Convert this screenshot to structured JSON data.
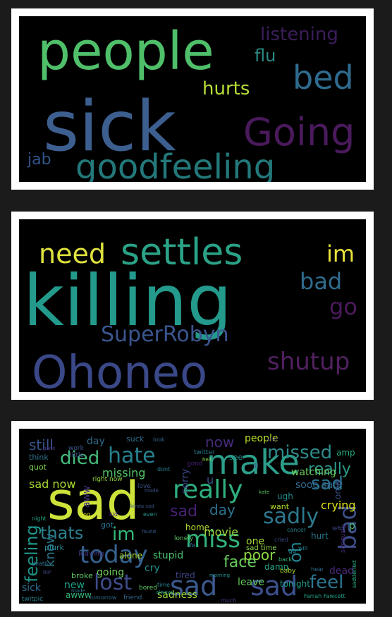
{
  "colors": {
    "page_background": "#1b1b1b",
    "frame": "#ffffff",
    "cloud_background": "#000000"
  },
  "clouds": [
    {
      "words": [
        {
          "text": "people",
          "color": "#4fbf6a"
        },
        {
          "text": "sick",
          "color": "#3d5f90"
        },
        {
          "text": "bed",
          "color": "#2e6b8e"
        },
        {
          "text": "Going",
          "color": "#4a1a5c"
        },
        {
          "text": "goodfeeling",
          "color": "#23787a"
        },
        {
          "text": "listening",
          "color": "#3b1e5a"
        },
        {
          "text": "flu",
          "color": "#2b8a86"
        },
        {
          "text": "hurts",
          "color": "#b6dd36"
        },
        {
          "text": "jab",
          "color": "#2f5588"
        }
      ]
    },
    {
      "words": [
        {
          "text": "need",
          "color": "#dfe13e"
        },
        {
          "text": "settles",
          "color": "#2aa286"
        },
        {
          "text": "im",
          "color": "#e8e13a"
        },
        {
          "text": "killing",
          "color": "#239a8c"
        },
        {
          "text": "bad",
          "color": "#2f6c8e"
        },
        {
          "text": "go",
          "color": "#4c1a5c"
        },
        {
          "text": "SuperRobyn",
          "color": "#3b558f"
        },
        {
          "text": "Ohoneo",
          "color": "#3a4888"
        },
        {
          "text": "shutup",
          "color": "#51215f"
        }
      ]
    },
    {
      "words": [
        {
          "text": "sad",
          "color": "#cde23a"
        },
        {
          "text": "make",
          "color": "#2d9e8a"
        },
        {
          "text": "really",
          "color": "#2fb07e"
        },
        {
          "text": "hate",
          "color": "#27808e"
        },
        {
          "text": "died",
          "color": "#46b97a"
        },
        {
          "text": "missed",
          "color": "#2f8a8c"
        },
        {
          "text": "today",
          "color": "#35628f"
        },
        {
          "text": "sad",
          "color": "#3c5a8e"
        },
        {
          "text": "sad",
          "color": "#3b4f8b"
        },
        {
          "text": "sadly",
          "color": "#2d788e"
        },
        {
          "text": "lost",
          "color": "#3f4c8a"
        },
        {
          "text": "miss",
          "color": "#32b27a"
        },
        {
          "text": "feel",
          "color": "#2b748e"
        },
        {
          "text": "feeling",
          "color": "#1f968b"
        },
        {
          "text": "thats",
          "color": "#2a818e"
        },
        {
          "text": "im",
          "color": "#35b779"
        },
        {
          "text": "bad",
          "color": "#3d4e8a"
        },
        {
          "text": "sad",
          "color": "#2c728e"
        },
        {
          "text": "face",
          "color": "#66c95b"
        },
        {
          "text": "poor",
          "color": "#8fd744"
        },
        {
          "text": "still",
          "color": "#3b528b"
        },
        {
          "text": "now",
          "color": "#472c7a"
        },
        {
          "text": "missing",
          "color": "#55c568"
        },
        {
          "text": "day",
          "color": "#2c728e"
        },
        {
          "text": "sad now",
          "color": "#a8db34"
        },
        {
          "text": "crying",
          "color": "#dde318"
        },
        {
          "text": "movie",
          "color": "#9cd93b"
        },
        {
          "text": "know",
          "color": "#2a788e"
        },
        {
          "text": "oh",
          "color": "#26828e"
        },
        {
          "text": "really",
          "color": "#2d9a8b"
        },
        {
          "text": "sooo sad",
          "color": "#31688e"
        },
        {
          "text": "watching",
          "color": "#6ccd5a"
        },
        {
          "text": "sorry",
          "color": "#3e4a89"
        },
        {
          "text": "aww",
          "color": "#46327e"
        },
        {
          "text": "people",
          "color": "#b5de2b"
        },
        {
          "text": "day",
          "color": "#2f6c8e"
        },
        {
          "text": "sad",
          "color": "#482173"
        },
        {
          "text": "new",
          "color": "#1fa187"
        },
        {
          "text": "going",
          "color": "#6ece58"
        },
        {
          "text": "sick",
          "color": "#31688e"
        },
        {
          "text": "sadness",
          "color": "#9bd93c"
        },
        {
          "text": "cry",
          "color": "#21918c"
        },
        {
          "text": "dead",
          "color": "#482878"
        },
        {
          "text": "hurt",
          "color": "#2a788e"
        },
        {
          "text": "ugh",
          "color": "#228c8d"
        },
        {
          "text": "one",
          "color": "#a5db36"
        },
        {
          "text": "stupid",
          "color": "#4ac16d"
        },
        {
          "text": "alone",
          "color": "#addc30"
        },
        {
          "text": "leave",
          "color": "#65cb5e"
        },
        {
          "text": "tired",
          "color": "#3f4788"
        },
        {
          "text": "damn",
          "color": "#21a685"
        },
        {
          "text": "home",
          "color": "#b4de2c"
        },
        {
          "text": "omg",
          "color": "#3b528b"
        },
        {
          "text": "suck",
          "color": "#2e6e8e"
        },
        {
          "text": "awww",
          "color": "#35b779"
        },
        {
          "text": "broke",
          "color": "#5ec962"
        },
        {
          "text": "leaving",
          "color": "#453781"
        },
        {
          "text": "plurk",
          "color": "#277f8e"
        },
        {
          "text": "tonight",
          "color": "#1f9e89"
        },
        {
          "text": "want",
          "color": "#b8de29"
        },
        {
          "text": "amp",
          "color": "#26ad81"
        },
        {
          "text": "got",
          "color": "#2c728e"
        },
        {
          "text": "u",
          "color": "#3b528b"
        },
        {
          "text": "quot",
          "color": "#7ad151"
        },
        {
          "text": "think",
          "color": "#2c728e"
        },
        {
          "text": "sad time",
          "color": "#8bd646"
        },
        {
          "text": "work",
          "color": "#3a548c"
        },
        {
          "text": "see",
          "color": "#21918c"
        },
        {
          "text": "twitter",
          "color": "#287c8e"
        },
        {
          "text": "good",
          "color": "#482475"
        },
        {
          "text": "little",
          "color": "#3e4989"
        },
        {
          "text": "baby",
          "color": "#addc30"
        },
        {
          "text": "seriously",
          "color": "#472d7b"
        },
        {
          "text": "right now",
          "color": "#8fd744"
        },
        {
          "text": "lonely",
          "color": "#5ac864"
        },
        {
          "text": "bored",
          "color": "#5ec962"
        },
        {
          "text": "friend",
          "color": "#31688e"
        },
        {
          "text": "tomorrow",
          "color": "#2c718e"
        },
        {
          "text": "twitpic",
          "color": "#27808e"
        },
        {
          "text": "Farrah Fawcett",
          "color": "#1fa088"
        },
        {
          "text": "look",
          "color": "#31688e"
        },
        {
          "text": "dont",
          "color": "#297b8e"
        },
        {
          "text": "love",
          "color": "#3b528b"
        },
        {
          "text": "life",
          "color": "#2a788e"
        },
        {
          "text": "night",
          "color": "#22a884"
        },
        {
          "text": "hear",
          "color": "#2d708e"
        },
        {
          "text": "back",
          "color": "#35b779"
        },
        {
          "text": "saddened",
          "color": "#28ae80"
        },
        {
          "text": "death",
          "color": "#2e6f8e"
        },
        {
          "text": "shit",
          "color": "#482979"
        },
        {
          "text": "cancer",
          "color": "#25848e"
        },
        {
          "text": "cried",
          "color": "#3e4989"
        },
        {
          "text": "will",
          "color": "#26828e"
        },
        {
          "text": "made",
          "color": "#2a788e"
        },
        {
          "text": "made",
          "color": "#3b528b"
        },
        {
          "text": "kid",
          "color": "#482878"
        },
        {
          "text": "much",
          "color": "#46337f"
        },
        {
          "text": "always",
          "color": "#1f9e89"
        },
        {
          "text": "time",
          "color": "#277f8e"
        },
        {
          "text": "dog",
          "color": "#d8e219"
        },
        {
          "text": "kinda sad",
          "color": "#3b528b"
        },
        {
          "text": "found",
          "color": "#365c8d"
        },
        {
          "text": "even",
          "color": "#1f988b"
        },
        {
          "text": "morning",
          "color": "#21918c"
        },
        {
          "text": "left",
          "color": "#3e4989"
        },
        {
          "text": "hell",
          "color": "#8fd744"
        },
        {
          "text": "gone",
          "color": "#46337f"
        },
        {
          "text": "RIP",
          "color": "#3f4788"
        },
        {
          "text": "kate",
          "color": "#5ec962"
        },
        {
          "text": "ill",
          "color": "#3b528b"
        },
        {
          "text": "go",
          "color": "#25858e"
        },
        {
          "text": "p",
          "color": "#46c06f"
        }
      ]
    }
  ]
}
